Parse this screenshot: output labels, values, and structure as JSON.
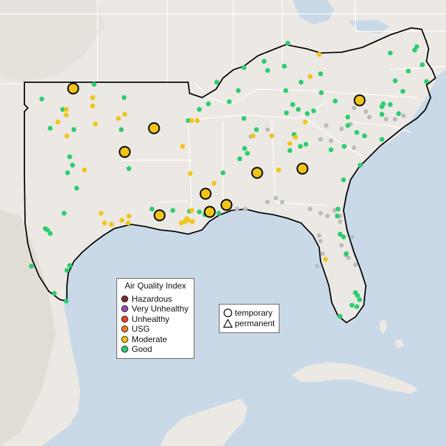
{
  "map": {
    "land_color": "#ece9e4",
    "water_color": "#c9d9e8",
    "border_color": "#000000",
    "state_line_color": "#ffffff",
    "terrain_color": "#d8d2ca"
  },
  "legend": {
    "title": "Air Quality Index",
    "categories": [
      {
        "label": "Hazardous",
        "color": "#7e2a2a"
      },
      {
        "label": "Very Unhealthy",
        "color": "#8e4fb5"
      },
      {
        "label": "Unhealthy",
        "color": "#e8402f"
      },
      {
        "label": "USG",
        "color": "#e87f1c"
      },
      {
        "label": "Moderate",
        "color": "#f0c419"
      },
      {
        "label": "Good",
        "color": "#2ecc71"
      }
    ],
    "no_data_color": "#bbbbbb"
  },
  "type_legend": {
    "items": [
      {
        "label": "temporary",
        "shape": "circle-icon"
      },
      {
        "label": "permanent",
        "shape": "triangle-icon"
      }
    ]
  },
  "monitors": {
    "large_moderate": [
      [
        105,
        127
      ],
      [
        221,
        184
      ],
      [
        179,
        218
      ],
      [
        369,
        248
      ],
      [
        434,
        242
      ],
      [
        516,
        144
      ],
      [
        295,
        278
      ],
      [
        301,
        304
      ],
      [
        325,
        294
      ],
      [
        229,
        309
      ]
    ],
    "good": [
      [
        60,
        142
      ],
      [
        135,
        121
      ],
      [
        178,
        140
      ],
      [
        72,
        184
      ],
      [
        106,
        186
      ],
      [
        90,
        157
      ],
      [
        100,
        225
      ],
      [
        104,
        237
      ],
      [
        97,
        248
      ],
      [
        110,
        270
      ],
      [
        92,
        306
      ],
      [
        68,
        330
      ],
      [
        72,
        335
      ],
      [
        65,
        328
      ],
      [
        45,
        382
      ],
      [
        78,
        421
      ],
      [
        95,
        432
      ],
      [
        100,
        381
      ],
      [
        96,
        388
      ],
      [
        174,
        186
      ],
      [
        185,
        242
      ],
      [
        218,
        300
      ],
      [
        248,
        302
      ],
      [
        272,
        303
      ],
      [
        286,
        304
      ],
      [
        294,
        308
      ],
      [
        314,
        306
      ],
      [
        320,
        248
      ],
      [
        351,
        213
      ],
      [
        355,
        220
      ],
      [
        344,
        228
      ],
      [
        368,
        186
      ],
      [
        350,
        170
      ],
      [
        342,
        130
      ],
      [
        329,
        146
      ],
      [
        299,
        149
      ],
      [
        286,
        157
      ],
      [
        270,
        173
      ],
      [
        311,
        118
      ],
      [
        350,
        97
      ],
      [
        379,
        88
      ],
      [
        384,
        101
      ],
      [
        408,
        95
      ],
      [
        413,
        62
      ],
      [
        410,
        130
      ],
      [
        432,
        118
      ],
      [
        460,
        106
      ],
      [
        461,
        133
      ],
      [
        481,
        145
      ],
      [
        499,
        168
      ],
      [
        499,
        180
      ],
      [
        512,
        190
      ],
      [
        550,
        149
      ],
      [
        548,
        153
      ],
      [
        560,
        150
      ],
      [
        548,
        164
      ],
      [
        572,
        163
      ],
      [
        578,
        131
      ],
      [
        586,
        102
      ],
      [
        612,
        117
      ],
      [
        598,
        67
      ],
      [
        595,
        72
      ],
      [
        606,
        93
      ],
      [
        560,
        76
      ],
      [
        567,
        116
      ],
      [
        411,
        162
      ],
      [
        420,
        150
      ],
      [
        428,
        157
      ],
      [
        441,
        163
      ],
      [
        450,
        159
      ],
      [
        422,
        193
      ],
      [
        431,
        210
      ],
      [
        439,
        207
      ],
      [
        416,
        216
      ],
      [
        475,
        215
      ],
      [
        517,
        237
      ],
      [
        493,
        258
      ],
      [
        485,
        300
      ],
      [
        484,
        310
      ],
      [
        488,
        336
      ],
      [
        493,
        340
      ],
      [
        497,
        364
      ],
      [
        510,
        420
      ],
      [
        513,
        424
      ],
      [
        516,
        430
      ],
      [
        512,
        440
      ],
      [
        505,
        438
      ],
      [
        488,
        454
      ],
      [
        494,
        210
      ],
      [
        523,
        195
      ],
      [
        548,
        200
      ]
    ],
    "moderate": [
      [
        95,
        157
      ],
      [
        95,
        165
      ],
      [
        133,
        140
      ],
      [
        133,
        152
      ],
      [
        137,
        178
      ],
      [
        83,
        175
      ],
      [
        96,
        195
      ],
      [
        179,
        164
      ],
      [
        170,
        170
      ],
      [
        121,
        244
      ],
      [
        145,
        306
      ],
      [
        150,
        320
      ],
      [
        160,
        322
      ],
      [
        175,
        316
      ],
      [
        185,
        310
      ],
      [
        184,
        320
      ],
      [
        275,
        173
      ],
      [
        283,
        173
      ],
      [
        273,
        249
      ],
      [
        262,
        210
      ],
      [
        265,
        318
      ],
      [
        270,
        316
      ],
      [
        276,
        318
      ],
      [
        275,
        302
      ],
      [
        307,
        263
      ],
      [
        363,
        195
      ],
      [
        390,
        195
      ],
      [
        400,
        244
      ],
      [
        416,
        206
      ],
      [
        424,
        197
      ],
      [
        445,
        110
      ],
      [
        458,
        78
      ],
      [
        438,
        175
      ],
      [
        467,
        372
      ],
      [
        260,
        320
      ],
      [
        268,
        314
      ]
    ],
    "none": [
      [
        384,
        186
      ],
      [
        360,
        196
      ],
      [
        340,
        300
      ],
      [
        352,
        300
      ],
      [
        384,
        290
      ],
      [
        445,
        300
      ],
      [
        460,
        306
      ],
      [
        470,
        310
      ],
      [
        475,
        202
      ],
      [
        460,
        200
      ],
      [
        468,
        180
      ],
      [
        508,
        155
      ],
      [
        525,
        160
      ],
      [
        530,
        168
      ],
      [
        554,
        171
      ],
      [
        567,
        171
      ],
      [
        579,
        166
      ],
      [
        503,
        178
      ],
      [
        490,
        185
      ],
      [
        508,
        212
      ],
      [
        458,
        338
      ],
      [
        460,
        346
      ],
      [
        490,
        352
      ],
      [
        496,
        366
      ],
      [
        510,
        380
      ],
      [
        500,
        370
      ],
      [
        455,
        382
      ],
      [
        463,
        364
      ],
      [
        488,
        310
      ],
      [
        488,
        318
      ],
      [
        505,
        340
      ],
      [
        480,
        302
      ],
      [
        396,
        284
      ],
      [
        405,
        290
      ]
    ]
  }
}
